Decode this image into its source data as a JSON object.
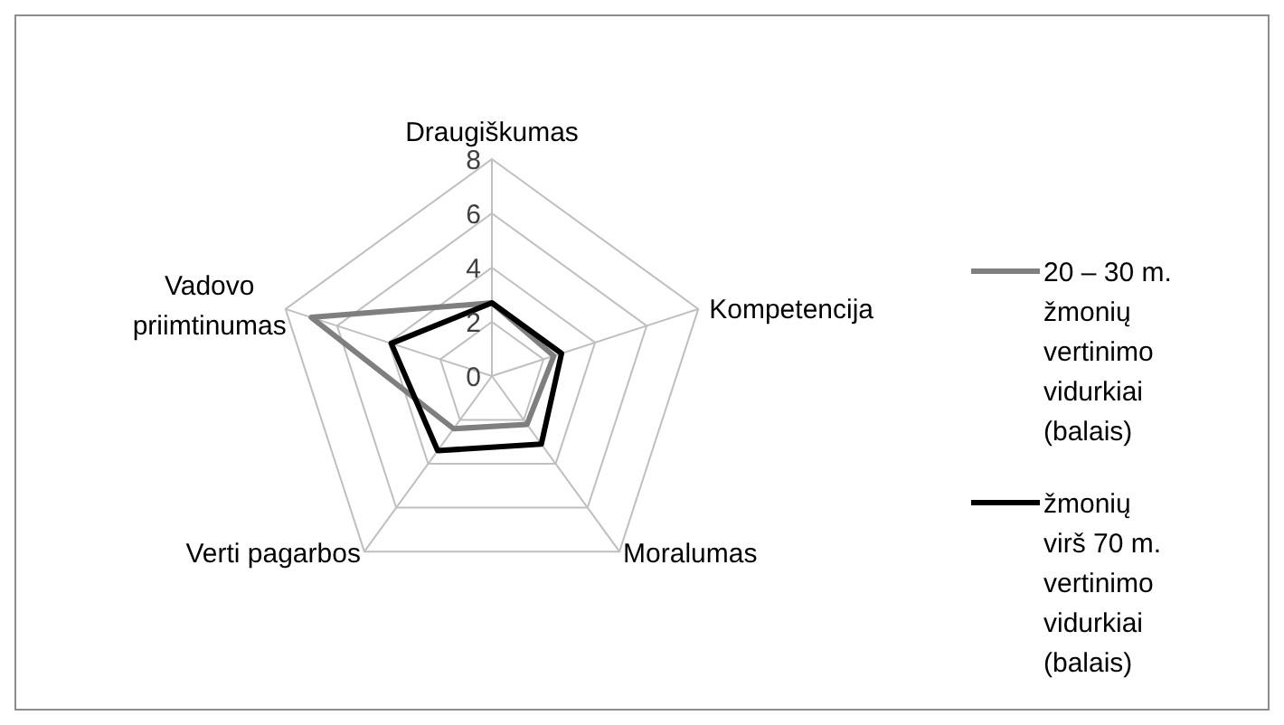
{
  "chart_data": {
    "type": "radar",
    "categories": [
      "Draugiškumas",
      "Kompetencija",
      "Moralumas",
      "Verti pagarbos",
      "Vadovo\npriimtinumas"
    ],
    "ylim": [
      0,
      8
    ],
    "yticks": [
      0,
      2,
      4,
      6,
      8
    ],
    "grid": true,
    "legend": "right",
    "series": [
      {
        "name": "20 – 30 m. žmonių vertinimo vidurkiai (balais)",
        "color": "#7f7f7f",
        "values": [
          2.7,
          2.4,
          2.2,
          2.4,
          7.0
        ]
      },
      {
        "name": "žmonių virš 70 m. vertinimo vidurkiai (balais)",
        "color": "#000000",
        "values": [
          2.7,
          2.7,
          3.1,
          3.4,
          3.9
        ]
      }
    ]
  }
}
